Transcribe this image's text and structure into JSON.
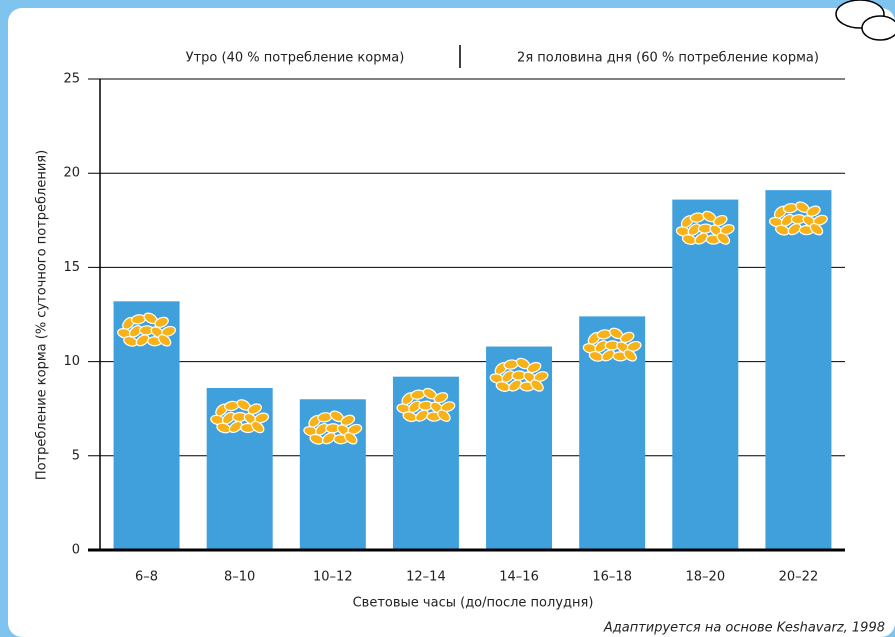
{
  "chart_data": {
    "type": "bar",
    "annotations": [
      "Утро (40 % потребление корма)",
      "2я половина дня (60 % потребление корма)"
    ],
    "categories": [
      "6–8",
      "8–10",
      "10–12",
      "12–14",
      "14–16",
      "16–18",
      "18–20",
      "20–22"
    ],
    "values": [
      13.2,
      8.6,
      8.0,
      9.2,
      10.8,
      12.4,
      18.6,
      19.1
    ],
    "color": "#3fa0dc",
    "ylim": [
      0,
      25
    ],
    "yticks": [
      0,
      5,
      10,
      15,
      20,
      25
    ],
    "grid": true,
    "x_label": "Световые часы (до/после полудня)",
    "y_label": "Потребление корма (% суточного потребления)",
    "source": "Адаптируется на основе  Keshavarz, 1998"
  }
}
